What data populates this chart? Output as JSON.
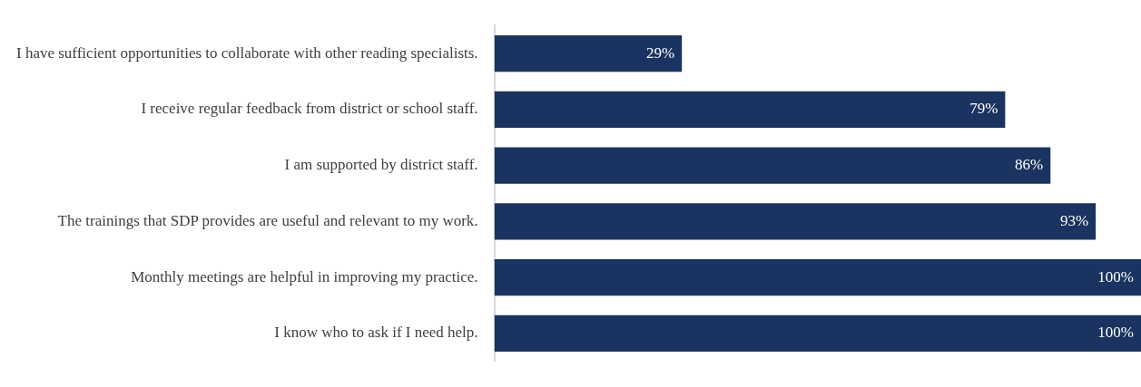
{
  "chart_data": {
    "type": "bar",
    "orientation": "horizontal",
    "categories": [
      "I have sufficient opportunities to collaborate with other reading specialists.",
      "I receive regular feedback from district or school staff.",
      "I am supported by district staff.",
      "The trainings that SDP provides are useful and relevant to my work.",
      "Monthly meetings are helpful in improving my practice.",
      "I know who to ask if I need help."
    ],
    "values": [
      29,
      79,
      86,
      93,
      100,
      100
    ],
    "value_labels": [
      "29%",
      "79%",
      "86%",
      "93%",
      "100%",
      "100%"
    ],
    "color": "#1b3360",
    "xlim": [
      0,
      100
    ],
    "tick_labels": "y",
    "grid": false,
    "legend": false
  }
}
